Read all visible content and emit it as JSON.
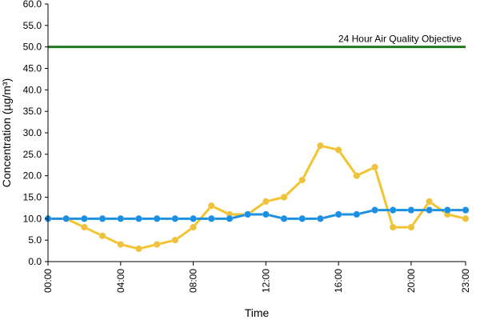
{
  "chart_data": {
    "type": "line",
    "xlabel": "Time",
    "ylabel": "Concentration (µg/m³)",
    "ylim": [
      0,
      60
    ],
    "y_ticks": [
      "0.0",
      "5.0",
      "10.0",
      "15.0",
      "20.0",
      "25.0",
      "30.0",
      "35.0",
      "40.0",
      "45.0",
      "50.0",
      "55.0",
      "60.0"
    ],
    "x_range": [
      0,
      23
    ],
    "x_ticks": [
      {
        "hour": 0,
        "label": "00:00"
      },
      {
        "hour": 4,
        "label": "04:00"
      },
      {
        "hour": 8,
        "label": "08:00"
      },
      {
        "hour": 12,
        "label": "12:00"
      },
      {
        "hour": 16,
        "label": "16:00"
      },
      {
        "hour": 20,
        "label": "20:00"
      },
      {
        "hour": 23,
        "label": "23:00"
      }
    ],
    "x": [
      0,
      1,
      2,
      3,
      4,
      5,
      6,
      7,
      8,
      9,
      10,
      11,
      12,
      13,
      14,
      15,
      16,
      17,
      18,
      19,
      20,
      21,
      22,
      23
    ],
    "series": [
      {
        "color": "#F2C530",
        "marker_color": "#EFC23D",
        "values": [
          10,
          10,
          8,
          6,
          4,
          3,
          4,
          5,
          8,
          13,
          11,
          11,
          14,
          15,
          19,
          27,
          26,
          20,
          22,
          8,
          8,
          14,
          11,
          10
        ]
      },
      {
        "color": "#1E90E0",
        "marker_color": "#1A8FE3",
        "values": [
          10,
          10,
          10,
          10,
          10,
          10,
          10,
          10,
          10,
          10,
          10,
          11,
          11,
          10,
          10,
          10,
          11,
          11,
          12,
          12,
          12,
          12,
          12,
          12
        ]
      }
    ],
    "reference_line": {
      "value": 50,
      "label": "24 Hour Air Quality Objective",
      "color": "#1E7A1E"
    },
    "grid": false
  }
}
